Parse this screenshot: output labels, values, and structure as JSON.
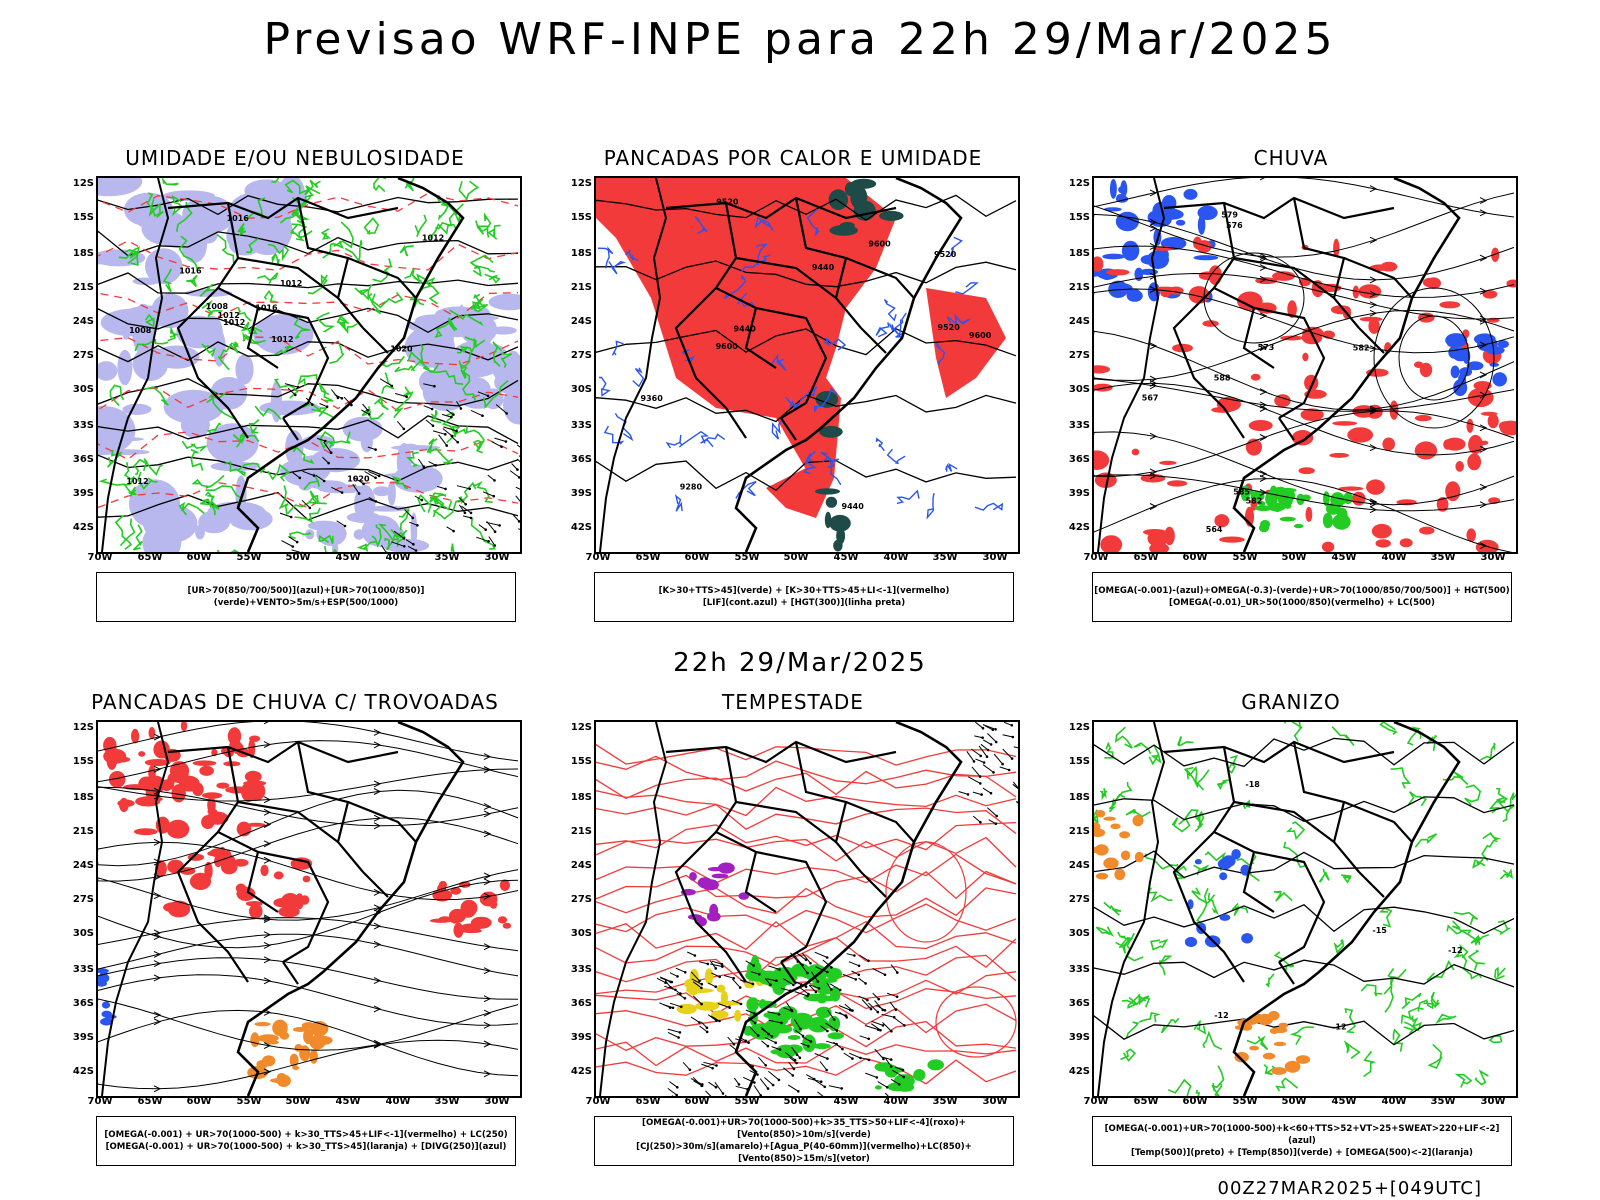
{
  "page": {
    "title": "Previsao WRF-INPE  para 22h 29/Mar/2025",
    "mid_date": "22h 29/Mar/2025",
    "footer": "00Z27MAR2025+[049UTC]"
  },
  "axes": {
    "lat_labels": [
      "12S",
      "15S",
      "18S",
      "21S",
      "24S",
      "27S",
      "30S",
      "33S",
      "36S",
      "39S",
      "42S"
    ],
    "lon_labels": [
      "70W",
      "65W",
      "60W",
      "55W",
      "50W",
      "45W",
      "40W",
      "35W",
      "30W"
    ]
  },
  "colors": {
    "red": "#f23a3a",
    "green": "#22cc22",
    "blue": "#2a55ee",
    "lavender": "#b8b8ee",
    "orange": "#f08a2a",
    "yellow": "#e6d21a",
    "purple": "#a020c0",
    "darkteal": "#1e4a48"
  },
  "panels": [
    {
      "title": "UMIDADE E/OU NEBULOSIDADE",
      "legend": [
        "[UR>70(850/700/500)](azul)+[UR>70(1000/850)](verde)+VENTO>5m/s+ESP(500/1000)"
      ],
      "contour_labels": [
        "1012",
        "1012",
        "1008",
        "1012",
        "1016",
        "1016",
        "1016",
        "1012",
        "1012",
        "1008",
        "1020",
        "1012",
        "1020"
      ]
    },
    {
      "title": "PANCADAS POR CALOR E UMIDADE",
      "legend": [
        "[K>30+TTS>45](verde) + [K>30+TTS>45+LI<-1](vermelho)",
        "[LIF](cont.azul) + [HGT(300)](linha preta)"
      ],
      "contour_labels": [
        "9600",
        "9600",
        "9600",
        "9520",
        "9520",
        "9440",
        "9520",
        "9360",
        "9280",
        "9440",
        "9440"
      ]
    },
    {
      "title": "CHUVA",
      "legend": [
        "[OMEGA(-0.001)-(azul)+OMEGA(-0.3)-(verde)+UR>70(1000/850/700/500)] + HGT(500)",
        "[OMEGA(-0.01)_UR>50(1000/850)(vermelho) + LC(500)"
      ],
      "contour_labels": [
        "588",
        "582",
        "582",
        "576",
        "573",
        "567",
        "564",
        "579",
        "585"
      ]
    },
    {
      "title": "PANCADAS DE CHUVA C/ TROVOADAS",
      "legend": [
        "[OMEGA(-0.001) + UR>70(1000-500) + k>30_TTS>45+LIF<-1](vermelho) + LC(250)",
        "[OMEGA(-0.001) + UR>70(1000-500) + k>30_TTS>45](laranja) + [DIVG(250)](azul)"
      ],
      "contour_labels": []
    },
    {
      "title": "TEMPESTADE",
      "legend": [
        "[OMEGA(-0.001)+UR>70(1000-500)+k>35_TTS>50+LIF<-4](roxo)+[Vento(850)>10m/s](verde)",
        "[CJ(250)>30m/s](amarelo)+[Agua_P(40-60mm)](vermelho)+LC(850)+[Vento(850)>15m/s](vetor)"
      ],
      "contour_labels": []
    },
    {
      "title": "GRANIZO",
      "legend": [
        "[OMEGA(-0.001)+UR>70(1000-500)+k<60+TTS>52+VT>25+SWEAT>220+LIF<-2](azul)",
        "[Temp(500)](preto) + [Temp(850)](verde) + [OMEGA(500)<-2](laranja)"
      ],
      "contour_labels": [
        "-12",
        "-15",
        "-18",
        "-12",
        "-12"
      ]
    }
  ]
}
